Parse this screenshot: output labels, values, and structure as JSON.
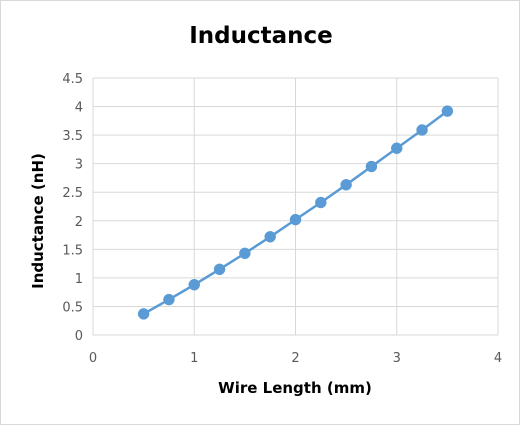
{
  "chart_data": {
    "type": "scatter",
    "title": "Inductance",
    "xlabel": "Wire Length (mm)",
    "ylabel": "Inductance (nH)",
    "xlim": [
      0,
      4
    ],
    "ylim": [
      0,
      4.5
    ],
    "x_ticks": [
      "0",
      "1",
      "2",
      "3",
      "4"
    ],
    "y_ticks": [
      "0",
      "0.5",
      "1",
      "1.5",
      "2",
      "2.5",
      "3",
      "3.5",
      "4",
      "4.5"
    ],
    "grid": true,
    "legend": "none",
    "line_style": "straight lines with markers",
    "series_color": "#5b9bd5",
    "series": [
      {
        "x": [
          0.5,
          0.75,
          1.0,
          1.25,
          1.5,
          1.75,
          2.0,
          2.25,
          2.5,
          2.75,
          3.0,
          3.25,
          3.5
        ],
        "y": [
          0.37,
          0.62,
          0.88,
          1.15,
          1.43,
          1.72,
          2.02,
          2.32,
          2.63,
          2.95,
          3.27,
          3.59,
          3.92
        ]
      }
    ]
  }
}
